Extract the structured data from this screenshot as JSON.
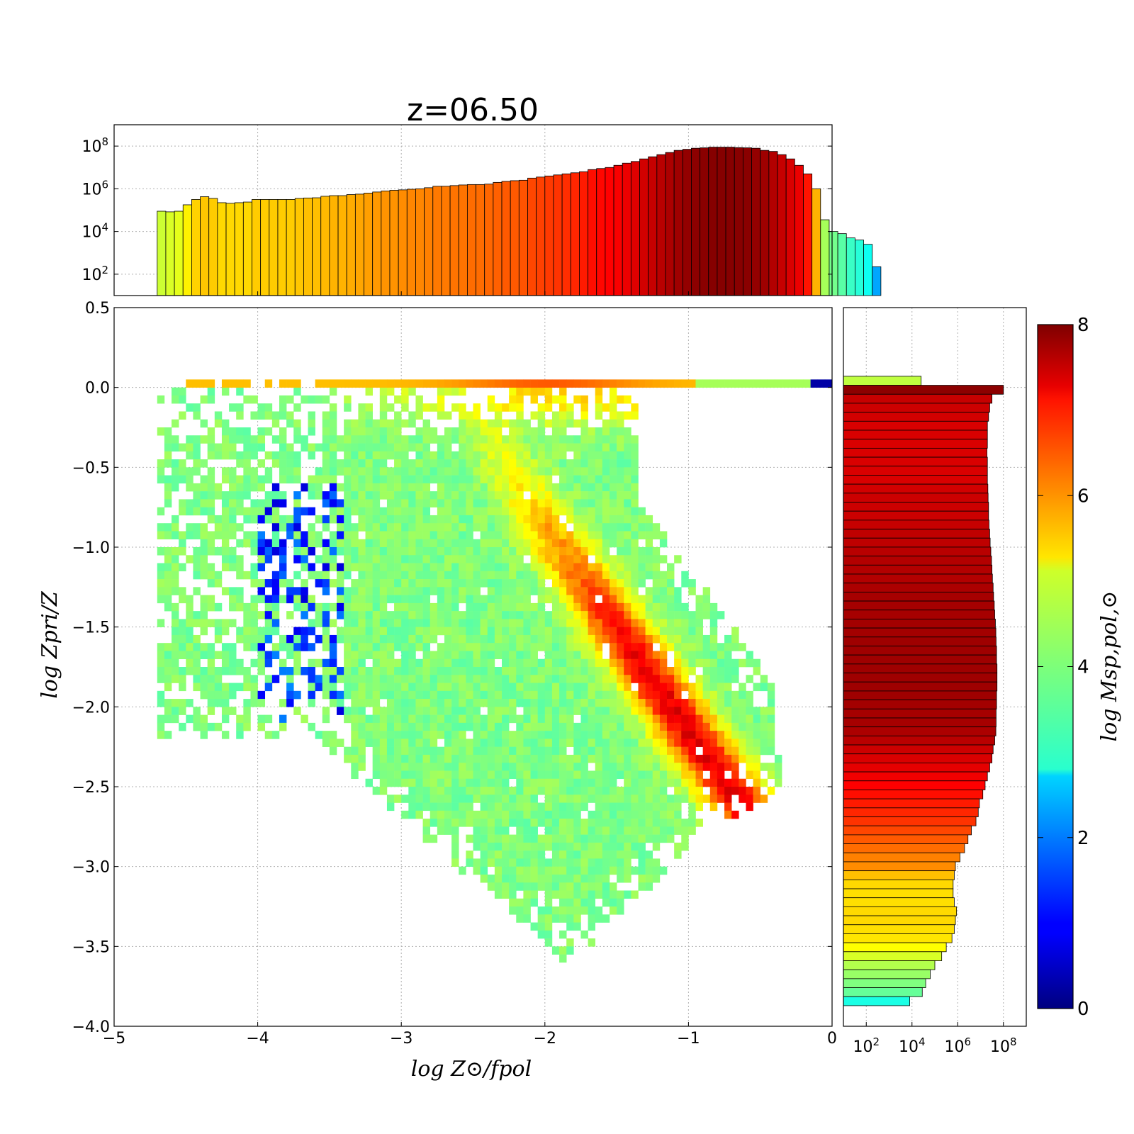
{
  "chart_data": [
    {
      "id": "top-histogram",
      "type": "bar",
      "title": "z=06.50",
      "x_range": [
        -5,
        0
      ],
      "y_scale": "log",
      "y_range_log10": [
        1.0,
        9.0
      ],
      "y_ticks": [
        {
          "v": 2,
          "label": "10",
          "exp": "2"
        },
        {
          "v": 4,
          "label": "10",
          "exp": "4"
        },
        {
          "v": 6,
          "label": "10",
          "exp": "6"
        },
        {
          "v": 8,
          "label": "10",
          "exp": "8"
        }
      ],
      "grid": true,
      "bin_start": -4.7,
      "bin_width": 0.06,
      "log10_values": [
        4.95,
        4.92,
        4.95,
        5.25,
        5.5,
        5.63,
        5.55,
        5.35,
        5.32,
        5.35,
        5.38,
        5.5,
        5.5,
        5.5,
        5.5,
        5.5,
        5.55,
        5.57,
        5.58,
        5.65,
        5.68,
        5.68,
        5.73,
        5.75,
        5.8,
        5.85,
        5.9,
        5.93,
        5.95,
        5.98,
        6.0,
        6.05,
        6.12,
        6.12,
        6.15,
        6.18,
        6.2,
        6.2,
        6.22,
        6.3,
        6.35,
        6.38,
        6.4,
        6.5,
        6.55,
        6.6,
        6.65,
        6.7,
        6.75,
        6.8,
        6.9,
        6.95,
        7.0,
        7.1,
        7.2,
        7.28,
        7.4,
        7.5,
        7.6,
        7.7,
        7.8,
        7.85,
        7.9,
        7.92,
        7.95,
        7.95,
        7.95,
        7.93,
        7.92,
        7.9,
        7.8,
        7.75,
        7.6,
        7.4,
        7.1,
        6.7,
        6.0,
        4.55,
        4.0,
        3.9,
        3.7,
        3.6,
        3.4,
        2.35
      ],
      "color_values": [
        4.6,
        4.7,
        4.8,
        5.1,
        5.35,
        5.45,
        5.4,
        5.3,
        5.3,
        5.3,
        5.3,
        5.4,
        5.4,
        5.4,
        5.4,
        5.4,
        5.45,
        5.5,
        5.5,
        5.55,
        5.6,
        5.6,
        5.65,
        5.7,
        5.75,
        5.8,
        5.85,
        5.85,
        5.9,
        5.95,
        5.95,
        6.0,
        6.05,
        6.05,
        6.1,
        6.1,
        6.15,
        6.15,
        6.2,
        6.25,
        6.3,
        6.3,
        6.35,
        6.45,
        6.5,
        6.55,
        6.6,
        6.65,
        6.7,
        6.8,
        6.9,
        6.95,
        7.0,
        7.05,
        7.15,
        7.25,
        7.35,
        7.45,
        7.55,
        7.65,
        7.75,
        7.85,
        7.9,
        7.92,
        7.95,
        7.95,
        7.95,
        7.93,
        7.92,
        7.85,
        7.75,
        7.6,
        7.45,
        7.3,
        7.15,
        6.85,
        5.6,
        4.3,
        3.9,
        3.7,
        3.45,
        3.3,
        3.1,
        2.3
      ]
    },
    {
      "id": "main-2d-histogram",
      "type": "heatmap",
      "xlabel": "log Z⊙/fpol",
      "ylabel": "log Zpri/Z",
      "x_range": [
        -5,
        0
      ],
      "y_range": [
        -4.0,
        0.5
      ],
      "x_ticks": [
        {
          "v": -5,
          "label": "−5"
        },
        {
          "v": -4,
          "label": "−4"
        },
        {
          "v": -3,
          "label": "−3"
        },
        {
          "v": -2,
          "label": "−2"
        },
        {
          "v": -1,
          "label": "−1"
        },
        {
          "v": 0,
          "label": "0"
        }
      ],
      "y_ticks": [
        {
          "v": 0.5,
          "label": "0.5"
        },
        {
          "v": 0.0,
          "label": "0.0"
        },
        {
          "v": -0.5,
          "label": "−0.5"
        },
        {
          "v": -1.0,
          "label": "−1.0"
        },
        {
          "v": -1.5,
          "label": "−1.5"
        },
        {
          "v": -2.0,
          "label": "−2.0"
        },
        {
          "v": -2.5,
          "label": "−2.5"
        },
        {
          "v": -3.0,
          "label": "−3.0"
        },
        {
          "v": -3.5,
          "label": "−3.5"
        },
        {
          "v": -4.0,
          "label": "−4.0"
        }
      ],
      "grid": true,
      "cmap": "jet",
      "color_range": [
        0,
        8
      ]
    },
    {
      "id": "right-histogram",
      "type": "bar",
      "orientation": "horizontal",
      "x_scale": "log",
      "x_range_log10": [
        1.0,
        9.0
      ],
      "x_ticks": [
        {
          "v": 2,
          "label": "10",
          "exp": "2"
        },
        {
          "v": 4,
          "label": "10",
          "exp": "4"
        },
        {
          "v": 6,
          "label": "10",
          "exp": "6"
        },
        {
          "v": 8,
          "label": "10",
          "exp": "8"
        }
      ],
      "y_range": [
        -4.0,
        0.5
      ],
      "grid": true,
      "bin_top": 0.07,
      "bin_width": 0.0563,
      "log10_values": [
        4.4,
        8.0,
        7.5,
        7.4,
        7.35,
        7.3,
        7.3,
        7.3,
        7.28,
        7.3,
        7.3,
        7.3,
        7.32,
        7.33,
        7.35,
        7.35,
        7.37,
        7.4,
        7.42,
        7.45,
        7.48,
        7.5,
        7.52,
        7.55,
        7.57,
        7.6,
        7.62,
        7.65,
        7.67,
        7.68,
        7.7,
        7.7,
        7.72,
        7.72,
        7.72,
        7.7,
        7.7,
        7.68,
        7.68,
        7.67,
        7.62,
        7.55,
        7.5,
        7.4,
        7.3,
        7.2,
        7.1,
        6.95,
        6.9,
        6.8,
        6.6,
        6.45,
        6.3,
        6.1,
        5.9,
        5.85,
        5.8,
        5.8,
        5.85,
        5.95,
        5.9,
        5.85,
        5.75,
        5.5,
        5.3,
        5.0,
        4.8,
        4.6,
        4.45,
        3.9
      ],
      "color_values": [
        4.5,
        7.9,
        7.45,
        7.4,
        7.35,
        7.3,
        7.3,
        7.3,
        7.3,
        7.3,
        7.3,
        7.3,
        7.35,
        7.4,
        7.4,
        7.4,
        7.45,
        7.5,
        7.5,
        7.55,
        7.6,
        7.6,
        7.6,
        7.65,
        7.7,
        7.7,
        7.7,
        7.72,
        7.72,
        7.75,
        7.75,
        7.75,
        7.75,
        7.75,
        7.75,
        7.75,
        7.72,
        7.7,
        7.7,
        7.65,
        7.55,
        7.4,
        7.3,
        7.2,
        7.1,
        7.0,
        6.9,
        6.8,
        6.7,
        6.6,
        6.45,
        6.3,
        6.15,
        6.0,
        5.9,
        5.5,
        5.3,
        5.25,
        5.25,
        5.3,
        5.3,
        5.25,
        5.2,
        5.0,
        4.7,
        4.4,
        4.2,
        4.0,
        3.8,
        3.2
      ]
    },
    {
      "id": "colorbar",
      "type": "colorbar",
      "cmap": "jet",
      "range": [
        0,
        8
      ],
      "ticks": [
        {
          "v": 0,
          "label": "0"
        },
        {
          "v": 2,
          "label": "2"
        },
        {
          "v": 4,
          "label": "4"
        },
        {
          "v": 6,
          "label": "6"
        },
        {
          "v": 8,
          "label": "8"
        }
      ],
      "label": "log Msp,pol,⊙"
    }
  ]
}
